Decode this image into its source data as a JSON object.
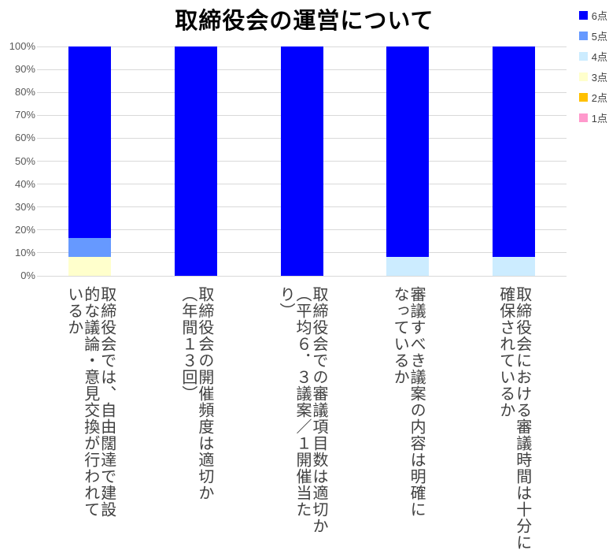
{
  "chart_data": {
    "type": "bar",
    "variant": "stacked-100-percent-column",
    "title": "取締役会の運営について",
    "categories": [
      "取締役会では、自由闊達で建設\n的な議論・意見交換が行われて\nいるか",
      "取締役会の開催頻度は適切か\n（年間１３回）",
      "取締役会での審議項目数は適切か\n（平均６．３議案／１開催当た\nり）",
      "審議すべき議案の内容は明確に\nなっているか",
      "取締役会における審議時間は十分に\n確保されているか"
    ],
    "series": [
      {
        "name": "6点",
        "color": "#0000FF",
        "values": [
          83.33,
          100,
          100,
          91.67,
          91.67
        ]
      },
      {
        "name": "5点",
        "color": "#6699FF",
        "values": [
          8.33,
          0,
          0,
          0,
          0
        ]
      },
      {
        "name": "4点",
        "color": "#CCECFF",
        "values": [
          0,
          0,
          0,
          8.33,
          8.33
        ]
      },
      {
        "name": "3点",
        "color": "#FFFFCC",
        "values": [
          8.33,
          0,
          0,
          0,
          0
        ]
      },
      {
        "name": "2点",
        "color": "#FFC000",
        "values": [
          0,
          0,
          0,
          0,
          0
        ]
      },
      {
        "name": "1点",
        "color": "#FF99CC",
        "values": [
          0,
          0,
          0,
          0,
          0
        ]
      }
    ],
    "xlabel": "",
    "ylabel": "",
    "ylim": [
      0,
      100
    ],
    "yticks": [
      "0%",
      "10%",
      "20%",
      "30%",
      "40%",
      "50%",
      "60%",
      "70%",
      "80%",
      "90%",
      "100%"
    ],
    "grid": true,
    "legend_position": "top-right",
    "palette": {
      "grid_color": "#D9D9D9",
      "axis_text_color": "#595959",
      "category_text_color": "#404040",
      "title_color": "#000000",
      "background": "#FFFFFF"
    }
  }
}
